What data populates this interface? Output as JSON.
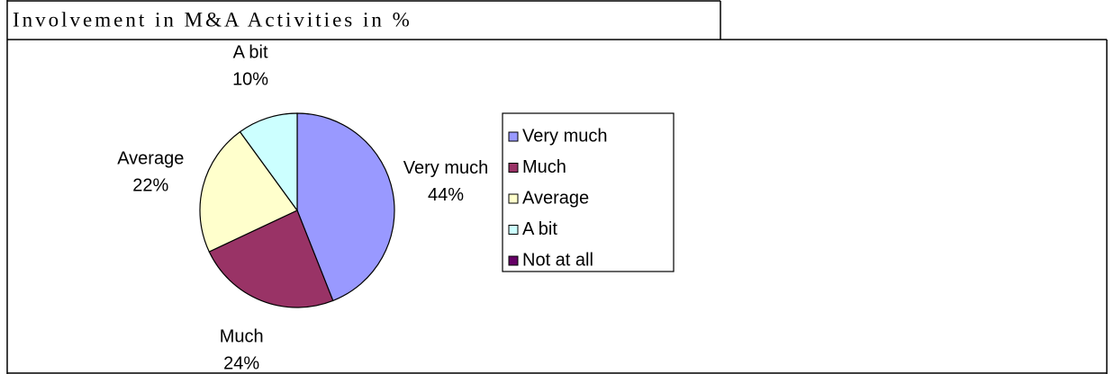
{
  "chart_data": {
    "type": "pie",
    "title": "Involvement in M&A Activities in %",
    "categories": [
      "Very much",
      "Much",
      "Average",
      "A bit",
      "Not at all"
    ],
    "values": [
      44,
      24,
      22,
      10,
      0
    ],
    "value_labels": [
      "44%",
      "24%",
      "22%",
      "10%",
      null
    ],
    "colors": [
      "#9999ff",
      "#993366",
      "#ffffcc",
      "#ccffff",
      "#660066"
    ],
    "legend": "right"
  }
}
